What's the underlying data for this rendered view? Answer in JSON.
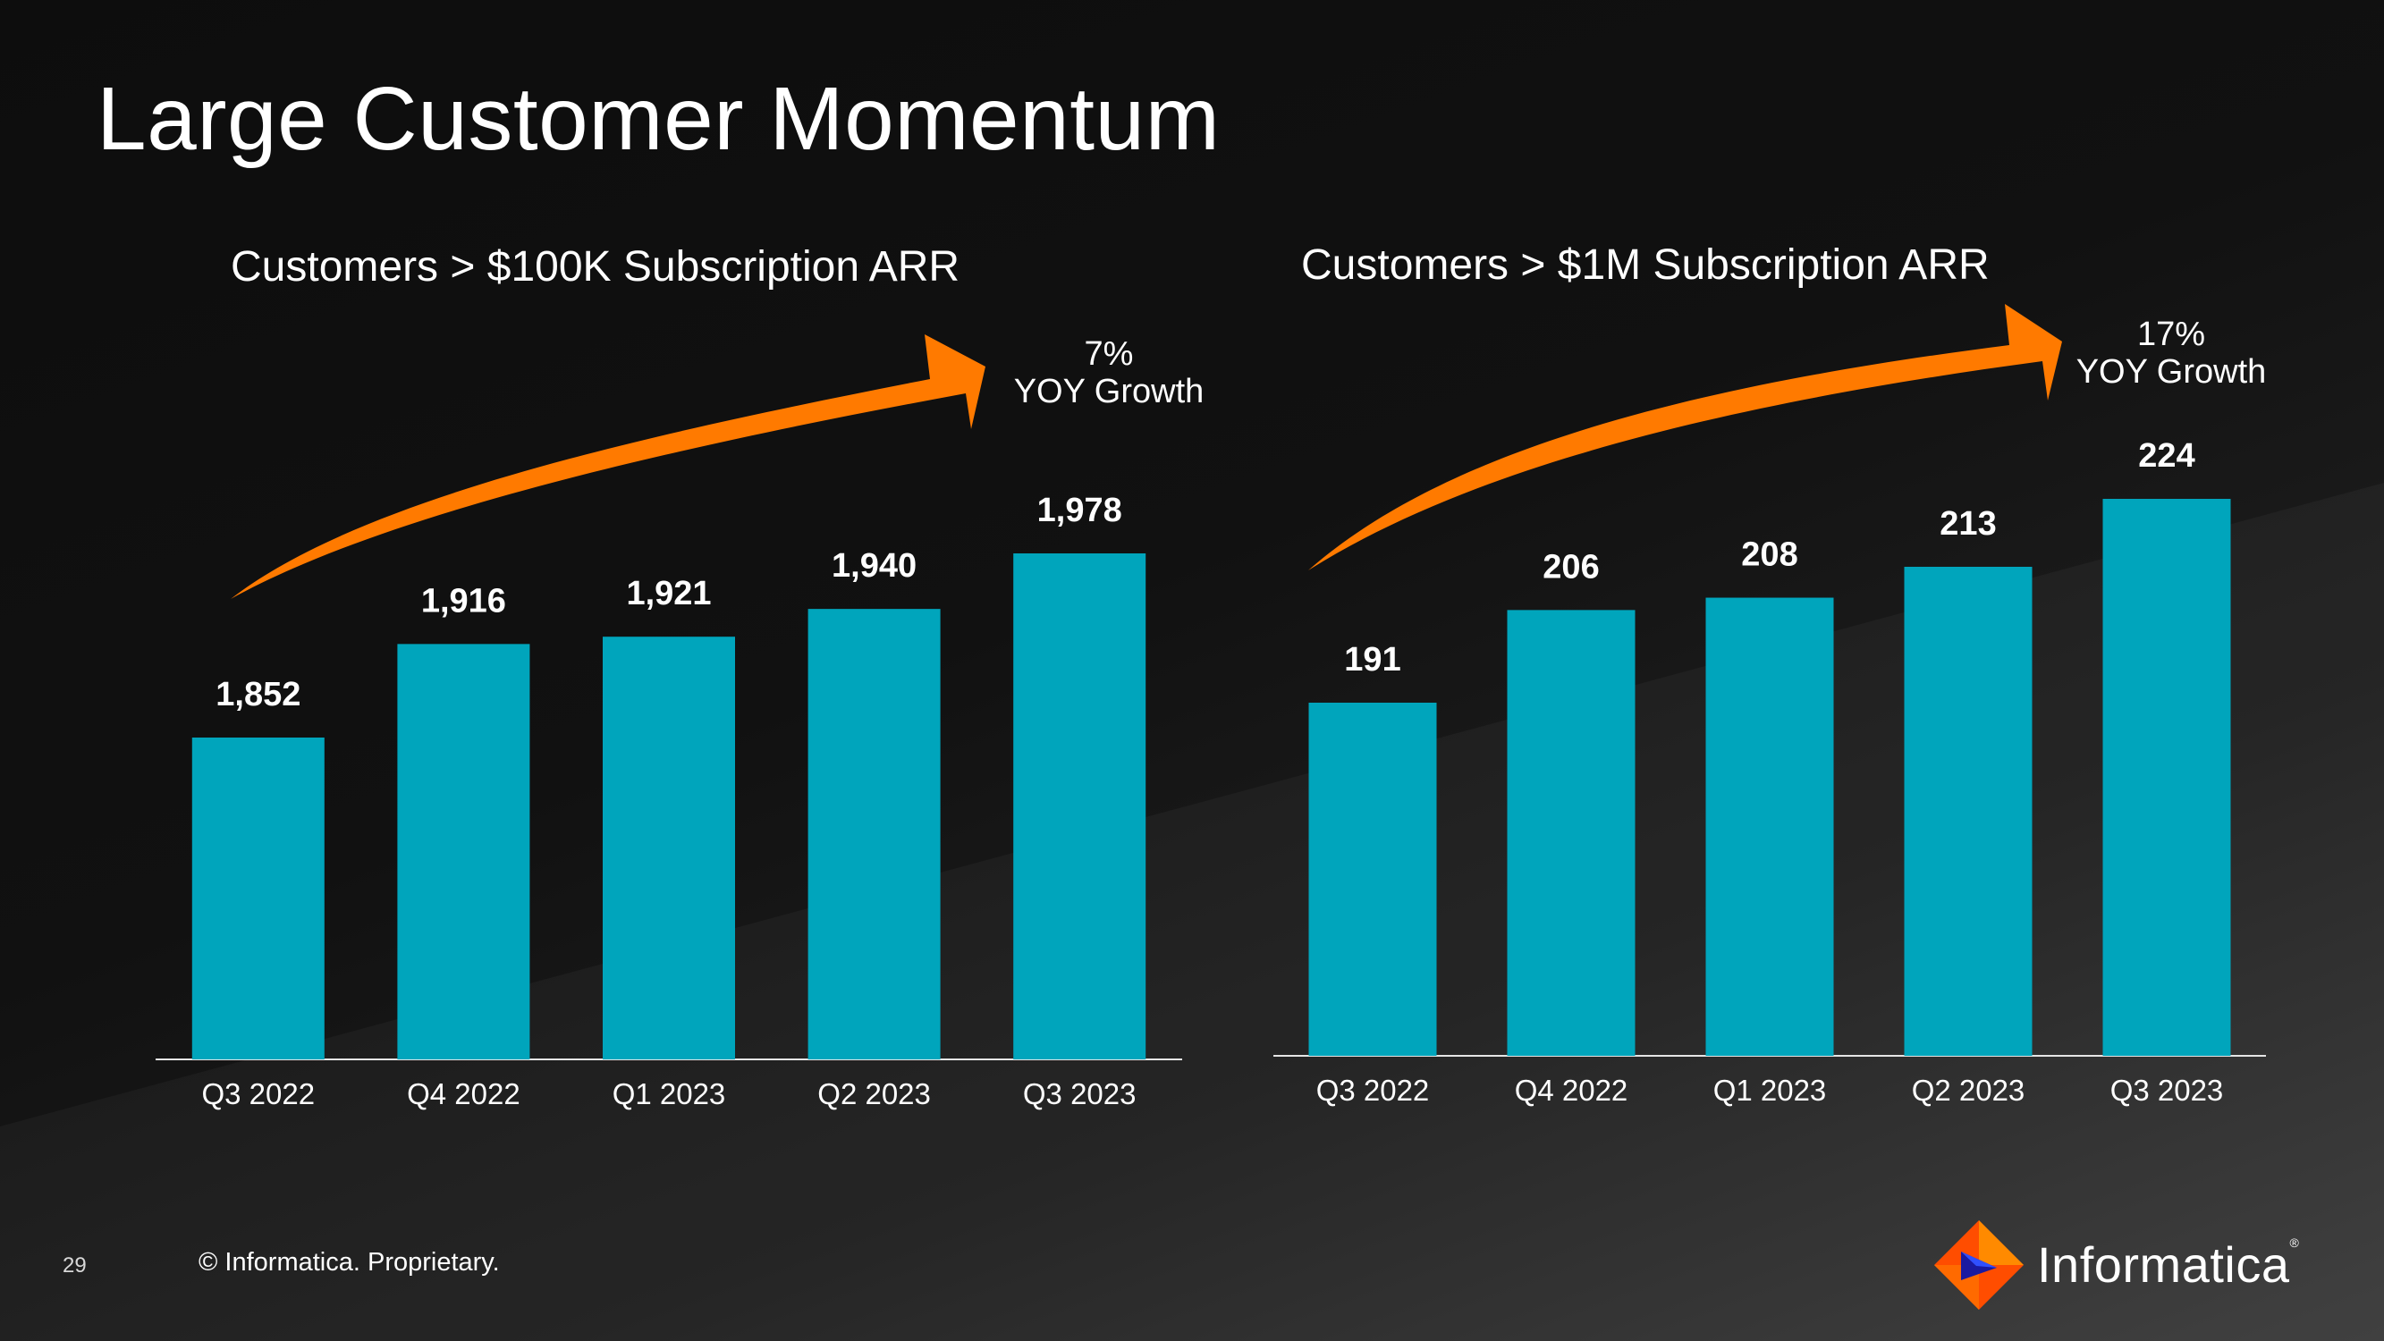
{
  "slide": {
    "title": "Large Customer Momentum",
    "page_number": "29",
    "footer": "© Informatica. Proprietary.",
    "brand": "Informatica"
  },
  "colors": {
    "bar": "#00A5BC",
    "arrow": "#FF7A00",
    "axis": "#e6e6e6"
  },
  "left": {
    "subtitle": "Customers > $100K Subscription ARR",
    "growth_pct": "7%",
    "growth_label": "YOY Growth"
  },
  "right": {
    "subtitle": "Customers >  $1M Subscription ARR",
    "growth_pct": "17%",
    "growth_label": "YOY Growth"
  },
  "chart_data": [
    {
      "type": "bar",
      "title": "Customers > $100K Subscription ARR",
      "categories": [
        "Q3 2022",
        "Q4 2022",
        "Q1 2023",
        "Q2 2023",
        "Q3 2023"
      ],
      "values": [
        1852,
        1916,
        1921,
        1940,
        1978
      ],
      "labels": [
        "1,852",
        "1,916",
        "1,921",
        "1,940",
        "1,978"
      ],
      "annotation": "7% YOY Growth",
      "grid": false
    },
    {
      "type": "bar",
      "title": "Customers >  $1M Subscription ARR",
      "categories": [
        "Q3 2022",
        "Q4 2022",
        "Q1 2023",
        "Q2 2023",
        "Q3 2023"
      ],
      "values": [
        191,
        206,
        208,
        213,
        224
      ],
      "labels": [
        "191",
        "206",
        "208",
        "213",
        "224"
      ],
      "annotation": "17% YOY Growth",
      "grid": false
    }
  ]
}
